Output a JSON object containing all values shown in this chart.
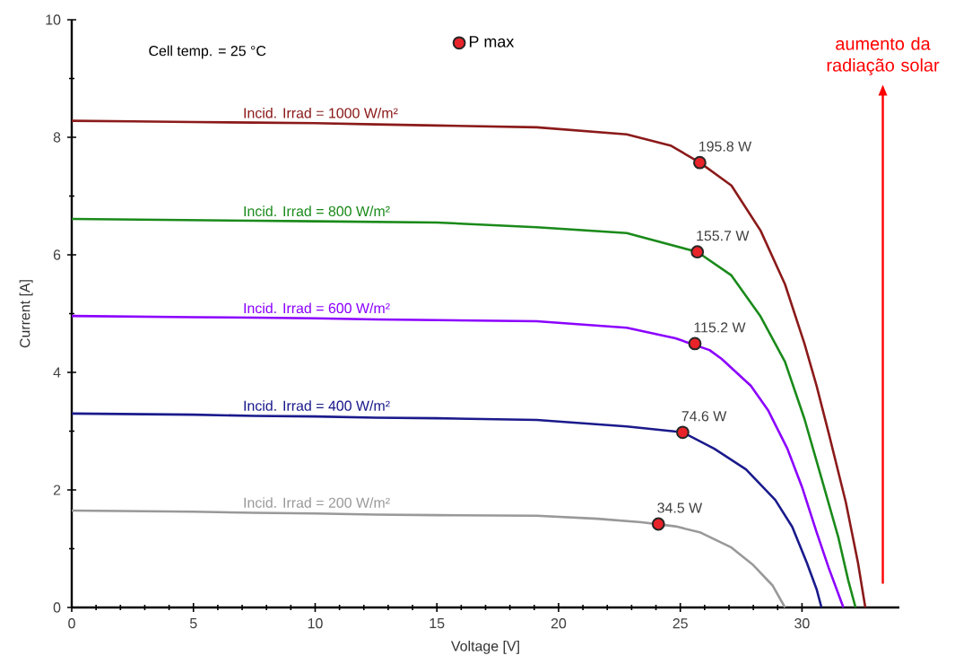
{
  "chart_data": {
    "type": "line",
    "xlabel": "Voltage [V]",
    "ylabel": "Current [A]",
    "xlim": [
      0,
      34
    ],
    "ylim": [
      0,
      10
    ],
    "xticks": [
      0,
      5,
      10,
      15,
      20,
      25,
      30
    ],
    "yticks": [
      0,
      2,
      4,
      6,
      8,
      10
    ],
    "grid": false,
    "legend": "top",
    "series": [
      {
        "name": "Incid. Irrad = 1000 W/m²",
        "type": "line",
        "marker": "none",
        "color": "#8b1a1a",
        "x": [
          0,
          2.5,
          5,
          7.5,
          10,
          12.5,
          15,
          19.1,
          22.8,
          24.6,
          25.8,
          27.1,
          28.3,
          29.3,
          30.1,
          30.6,
          31.1,
          31.8,
          32.3,
          32.6
        ],
        "values": [
          8.28,
          8.27,
          8.26,
          8.25,
          8.24,
          8.22,
          8.2,
          8.17,
          8.05,
          7.86,
          7.57,
          7.18,
          6.41,
          5.5,
          4.49,
          3.77,
          2.96,
          1.79,
          0.76,
          0
        ]
      },
      {
        "name": "Incid. Irrad = 800 W/m²",
        "type": "line",
        "marker": "none",
        "color": "#1a8a1a",
        "x": [
          0,
          2.5,
          5,
          7.5,
          10,
          12.5,
          15,
          19.1,
          22.8,
          25.7,
          27.1,
          28.3,
          29.3,
          30.1,
          30.8,
          31.5,
          31.9,
          32.2
        ],
        "values": [
          6.61,
          6.6,
          6.59,
          6.58,
          6.57,
          6.56,
          6.55,
          6.47,
          6.37,
          6.05,
          5.65,
          4.95,
          4.18,
          3.21,
          2.2,
          1.18,
          0.46,
          0
        ]
      },
      {
        "name": "Incid. Irrad = 600 W/m²",
        "type": "line",
        "marker": "none",
        "color": "#8b00ff",
        "x": [
          0,
          2.5,
          5,
          7.5,
          10,
          12.5,
          15,
          19.1,
          22.8,
          24.8,
          26.2,
          26.7,
          27.9,
          28.6,
          29.4,
          30.0,
          30.6,
          31.1,
          31.7
        ],
        "values": [
          4.96,
          4.95,
          4.94,
          4.93,
          4.92,
          4.9,
          4.89,
          4.87,
          4.76,
          4.58,
          4.38,
          4.23,
          3.77,
          3.36,
          2.7,
          2.05,
          1.28,
          0.67,
          0
        ]
      },
      {
        "name": "Incid. Irrad = 400 W/m²",
        "type": "line",
        "marker": "none",
        "color": "#1a1a8c",
        "x": [
          0,
          2.5,
          5,
          7.5,
          10,
          12.5,
          15,
          19.1,
          22.8,
          25.1,
          26.4,
          27.7,
          28.9,
          29.6,
          30.2,
          30.6,
          30.8
        ],
        "values": [
          3.3,
          3.29,
          3.28,
          3.26,
          3.25,
          3.23,
          3.22,
          3.19,
          3.08,
          2.98,
          2.7,
          2.35,
          1.83,
          1.37,
          0.76,
          0.31,
          0
        ]
      },
      {
        "name": "Incid. Irrad = 200 W/m²",
        "type": "line",
        "marker": "none",
        "color": "#999999",
        "x": [
          0,
          2.5,
          5,
          7.5,
          10,
          12.5,
          15,
          19.1,
          21.6,
          23.4,
          24.8,
          25.8,
          27.1,
          28.0,
          28.8,
          29.3
        ],
        "values": [
          1.65,
          1.64,
          1.63,
          1.61,
          1.6,
          1.58,
          1.57,
          1.56,
          1.51,
          1.45,
          1.38,
          1.28,
          1.02,
          0.72,
          0.37,
          0
        ]
      },
      {
        "name": "P max",
        "type": "scatter",
        "marker": "circle",
        "color": "#e8232a",
        "x": [
          25.8,
          25.7,
          25.6,
          25.1,
          24.1
        ],
        "values": [
          7.57,
          6.05,
          4.49,
          2.98,
          1.42
        ]
      }
    ],
    "annotations": [
      "Cell temp. = 25 °C",
      "aumento da radiação solar",
      {
        "text": "195.8 W",
        "x": 25.8,
        "y": 7.57
      },
      {
        "text": "155.7 W",
        "x": 25.7,
        "y": 6.05
      },
      {
        "text": "115.2 W",
        "x": 25.6,
        "y": 4.49
      },
      {
        "text": "74.6 W",
        "x": 25.1,
        "y": 2.98
      },
      {
        "text": "34.5 W",
        "x": 24.1,
        "y": 1.42
      }
    ]
  }
}
